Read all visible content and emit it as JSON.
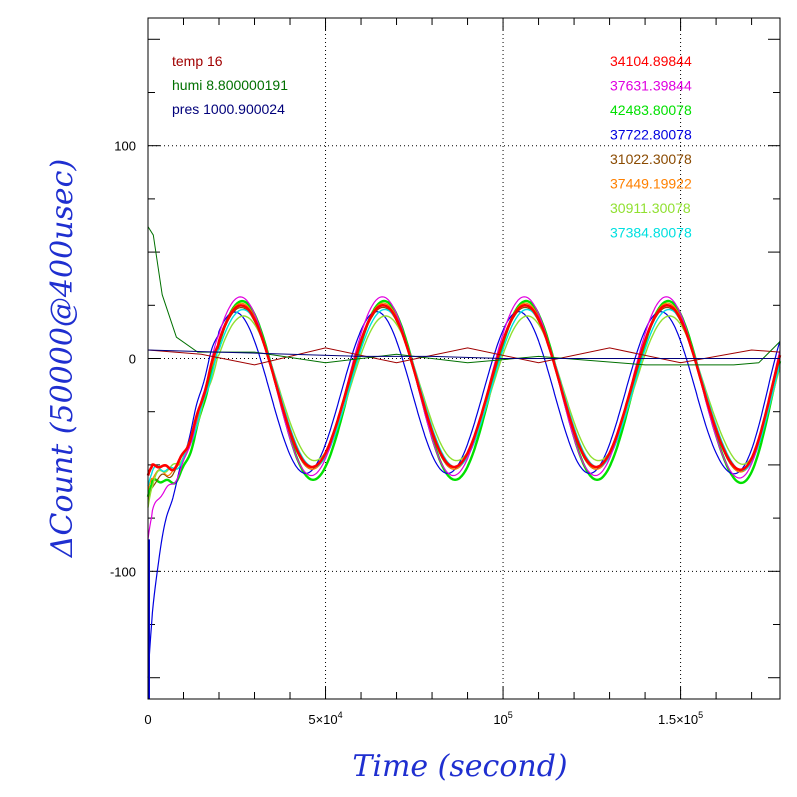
{
  "chart_data": {
    "type": "line",
    "xlabel": "Time (second)",
    "ylabel": "ΔCount (50000@400usec)",
    "xlim": [
      0,
      178000
    ],
    "ylim": [
      -160,
      160
    ],
    "grid": true,
    "x_ticks": [
      {
        "value": 0,
        "label": "0",
        "base": "0",
        "exp": ""
      },
      {
        "value": 50000,
        "label": "5×10^4",
        "base": "5×10",
        "exp": "4"
      },
      {
        "value": 100000,
        "label": "10^5",
        "base": "10",
        "exp": "5"
      },
      {
        "value": 150000,
        "label": "1.5×10^5",
        "base": "1.5×10",
        "exp": "5"
      }
    ],
    "y_ticks": [
      {
        "value": 100,
        "label": "100"
      },
      {
        "value": 0,
        "label": "0"
      },
      {
        "value": -100,
        "label": "-100"
      }
    ],
    "legend_left": [
      {
        "text": "temp 16",
        "color": "#a00000"
      },
      {
        "text": "humi 8.800000191",
        "color": "#007000"
      },
      {
        "text": "pres 1000.900024",
        "color": "#00007a"
      }
    ],
    "legend_right": [
      {
        "text": "34104.89844",
        "color": "#ff0000"
      },
      {
        "text": "37631.39844",
        "color": "#e000e0"
      },
      {
        "text": "42483.80078",
        "color": "#00e000"
      },
      {
        "text": "37722.80078",
        "color": "#0000e0"
      },
      {
        "text": "31022.30078",
        "color": "#8a4a00"
      },
      {
        "text": "37449.19922",
        "color": "#ff8000"
      },
      {
        "text": "30911.30078",
        "color": "#90e030"
      },
      {
        "text": "37384.80078",
        "color": "#00e0e0"
      }
    ],
    "oscillation": {
      "period": 40000,
      "phase_peak_x": 26000,
      "offset": -13
    },
    "series": [
      {
        "color": "#00e000",
        "amplitude": 42,
        "offset_adj": -2,
        "phase_shift": 500,
        "start_y": -65,
        "width": 2.4
      },
      {
        "color": "#0000e0",
        "amplitude": 38,
        "offset_adj": -3,
        "phase_shift": -1600,
        "start_y": -150,
        "width": 1.2
      },
      {
        "color": "#8a4a00",
        "amplitude": 38,
        "offset_adj": -1,
        "phase_shift": 200,
        "start_y": -68,
        "width": 1.2
      },
      {
        "color": "#ff8000",
        "amplitude": 39,
        "offset_adj": 0,
        "phase_shift": 300,
        "start_y": -62,
        "width": 1.2
      },
      {
        "color": "#90e030",
        "amplitude": 34,
        "offset_adj": -1,
        "phase_shift": 900,
        "start_y": -70,
        "width": 1.4
      },
      {
        "color": "#00e0e0",
        "amplitude": 37,
        "offset_adj": -1,
        "phase_shift": 700,
        "start_y": -60,
        "width": 1.4
      },
      {
        "color": "#e000e0",
        "amplitude": 42,
        "offset_adj": 0,
        "phase_shift": 0,
        "start_y": -85,
        "width": 1.2
      },
      {
        "color": "#ff0000",
        "amplitude": 38,
        "offset_adj": 0,
        "phase_shift": 200,
        "start_y": -55,
        "width": 2.6
      }
    ],
    "env_series": [
      {
        "name": "temp",
        "color": "#a00000",
        "points": [
          [
            0,
            4
          ],
          [
            15000,
            2
          ],
          [
            30000,
            -3
          ],
          [
            50000,
            5
          ],
          [
            70000,
            -2
          ],
          [
            90000,
            5
          ],
          [
            110000,
            -2
          ],
          [
            130000,
            5
          ],
          [
            150000,
            -2
          ],
          [
            170000,
            4
          ],
          [
            178000,
            3
          ]
        ]
      },
      {
        "name": "humi",
        "color": "#007000",
        "points": [
          [
            0,
            62
          ],
          [
            1500,
            58
          ],
          [
            4000,
            30
          ],
          [
            8000,
            10
          ],
          [
            14000,
            3
          ],
          [
            30000,
            3
          ],
          [
            50000,
            -2
          ],
          [
            70000,
            2
          ],
          [
            90000,
            -2
          ],
          [
            110000,
            1
          ],
          [
            140000,
            -3
          ],
          [
            165000,
            -3
          ],
          [
            172000,
            -2
          ],
          [
            178000,
            8
          ]
        ]
      },
      {
        "name": "pres",
        "color": "#00007a",
        "points": [
          [
            0,
            4
          ],
          [
            20000,
            3
          ],
          [
            40000,
            2
          ],
          [
            60000,
            1
          ],
          [
            80000,
            1
          ],
          [
            100000,
            0
          ],
          [
            120000,
            0
          ],
          [
            150000,
            0
          ],
          [
            178000,
            0
          ]
        ]
      }
    ]
  }
}
